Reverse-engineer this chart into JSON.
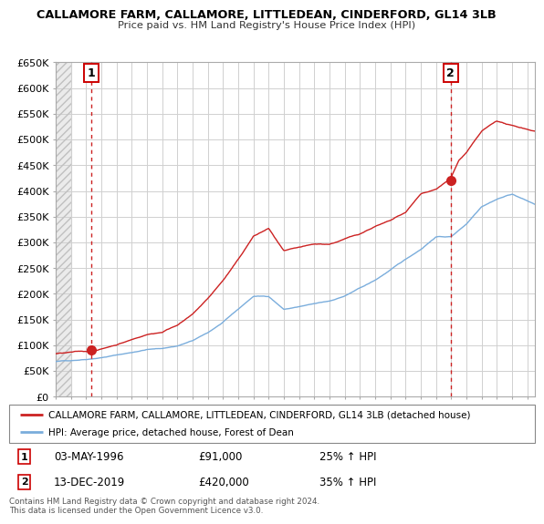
{
  "title": "CALLAMORE FARM, CALLAMORE, LITTLEDEAN, CINDERFORD, GL14 3LB",
  "subtitle": "Price paid vs. HM Land Registry's House Price Index (HPI)",
  "ylabel_ticks": [
    "£0",
    "£50K",
    "£100K",
    "£150K",
    "£200K",
    "£250K",
    "£300K",
    "£350K",
    "£400K",
    "£450K",
    "£500K",
    "£550K",
    "£600K",
    "£650K"
  ],
  "ytick_values": [
    0,
    50000,
    100000,
    150000,
    200000,
    250000,
    300000,
    350000,
    400000,
    450000,
    500000,
    550000,
    600000,
    650000
  ],
  "xmin": 1994.0,
  "xmax": 2025.5,
  "ymin": 0,
  "ymax": 650000,
  "transaction1": {
    "date_num": 1996.35,
    "price": 91000,
    "label": "1",
    "pct": "25% ↑ HPI",
    "date_str": "03-MAY-1996"
  },
  "transaction2": {
    "date_num": 2019.96,
    "price": 420000,
    "label": "2",
    "pct": "35% ↑ HPI",
    "date_str": "13-DEC-2019"
  },
  "legend_line1": "CALLAMORE FARM, CALLAMORE, LITTLEDEAN, CINDERFORD, GL14 3LB (detached house)",
  "legend_line2": "HPI: Average price, detached house, Forest of Dean",
  "footnote": "Contains HM Land Registry data © Crown copyright and database right 2024.\nThis data is licensed under the Open Government Licence v3.0.",
  "hpi_color": "#7aaddc",
  "price_color": "#cc2222",
  "dot_color": "#cc2222",
  "vline_color": "#cc2222",
  "grid_color": "#d0d0d0",
  "box_color": "#cc0000",
  "hpi_anchors_t": [
    1994.0,
    1995.0,
    1996.0,
    1997.0,
    1998.0,
    1999.0,
    2000.0,
    2001.0,
    2002.0,
    2003.0,
    2004.0,
    2005.0,
    2006.0,
    2007.0,
    2008.0,
    2009.0,
    2010.0,
    2011.0,
    2012.0,
    2013.0,
    2014.0,
    2015.0,
    2016.0,
    2017.0,
    2018.0,
    2019.0,
    2020.0,
    2021.0,
    2022.0,
    2023.0,
    2024.0,
    2025.5
  ],
  "hpi_anchors_v": [
    68000,
    70000,
    73000,
    77000,
    82000,
    87000,
    93000,
    95000,
    100000,
    110000,
    125000,
    145000,
    170000,
    195000,
    195000,
    170000,
    175000,
    180000,
    185000,
    195000,
    210000,
    225000,
    245000,
    265000,
    285000,
    310000,
    310000,
    335000,
    370000,
    385000,
    395000,
    375000
  ],
  "price_anchors_t": [
    1994.0,
    1995.5,
    1996.0,
    1996.35,
    1997.0,
    1998.0,
    1999.0,
    2000.0,
    2001.0,
    2002.0,
    2003.0,
    2004.0,
    2005.0,
    2006.0,
    2007.0,
    2008.0,
    2009.0,
    2010.0,
    2011.0,
    2012.0,
    2013.0,
    2014.0,
    2015.0,
    2016.0,
    2017.0,
    2018.0,
    2019.0,
    2019.96,
    2020.5,
    2021.0,
    2022.0,
    2023.0,
    2024.0,
    2025.5
  ],
  "price_anchors_v": [
    88000,
    91000,
    91000,
    91000,
    96000,
    105000,
    115000,
    125000,
    130000,
    145000,
    165000,
    195000,
    230000,
    270000,
    315000,
    330000,
    285000,
    290000,
    295000,
    295000,
    305000,
    315000,
    330000,
    340000,
    355000,
    390000,
    400000,
    420000,
    455000,
    470000,
    510000,
    530000,
    520000,
    510000
  ],
  "noise_seed": 42,
  "hpi_noise": 3000,
  "price_noise": 4000
}
